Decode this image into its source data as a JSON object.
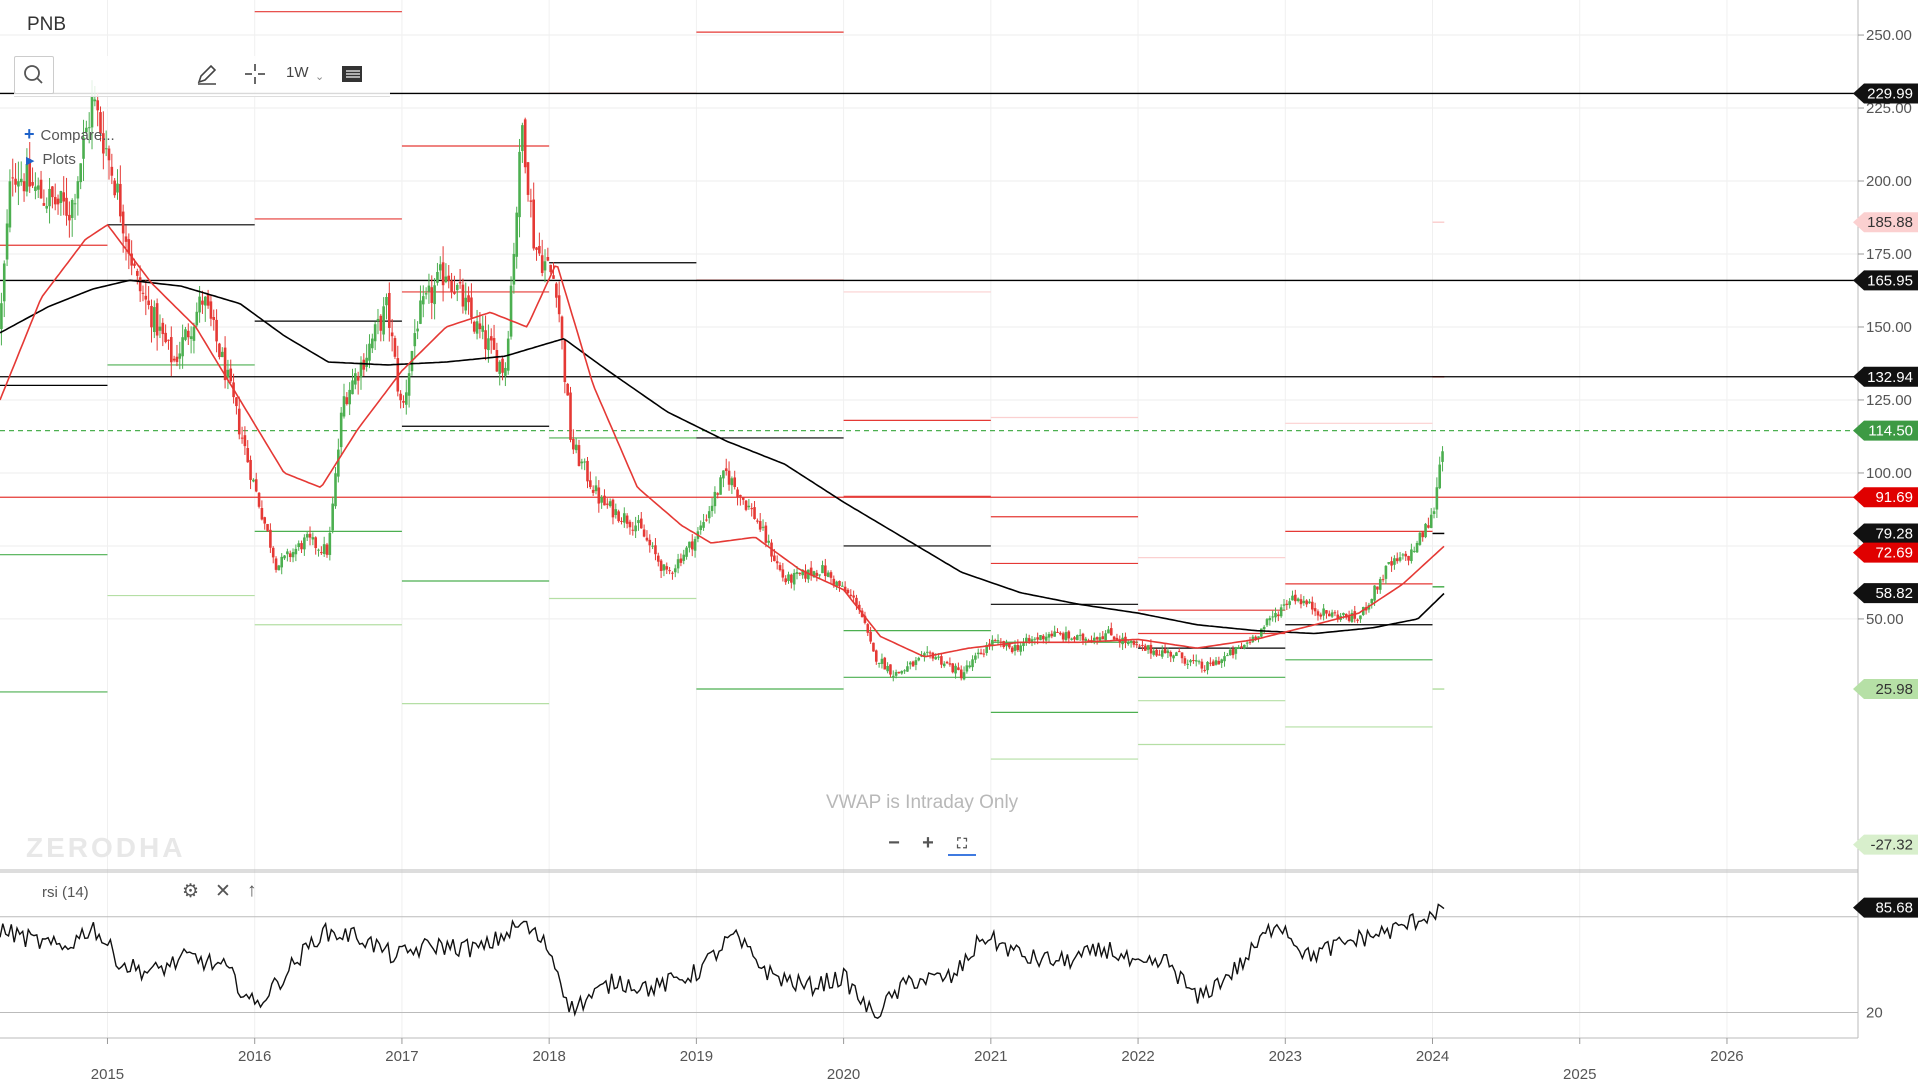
{
  "toolbar": {
    "symbol": "PNB",
    "interval": "1W",
    "compare_label": "Compare...",
    "plots_label": "Plots"
  },
  "overlay": {
    "watermark": "ZERODHA",
    "vwap_note": "VWAP is Intraday Only"
  },
  "rsi_panel": {
    "label": "rsi (14)"
  },
  "colors": {
    "up": "#4caf50",
    "down": "#e53935",
    "sma_fast": "#e53935",
    "sma_slow": "#000000",
    "current_price": "#3d9a44"
  },
  "chart_data": {
    "type": "candlestick",
    "symbol": "PNB",
    "interval": "1W",
    "x_axis": {
      "range": [
        2014.27,
        2026.89
      ],
      "ticks": [
        {
          "label": "2015",
          "value": 2015
        },
        {
          "label": "2016",
          "value": 2016
        },
        {
          "label": "2017",
          "value": 2017
        },
        {
          "label": "2018",
          "value": 2018
        },
        {
          "label": "2019",
          "value": 2019
        },
        {
          "label": "2020",
          "value": 2020
        },
        {
          "label": "2021",
          "value": 2021
        },
        {
          "label": "2022",
          "value": 2022
        },
        {
          "label": "2023",
          "value": 2023
        },
        {
          "label": "2024",
          "value": 2024
        },
        {
          "label": "2025",
          "value": 2025
        },
        {
          "label": "2026",
          "value": 2026
        }
      ]
    },
    "y_axis": {
      "range": [
        -36,
        262
      ],
      "ticks": [
        "250.00",
        "225.00",
        "200.00",
        "175.00",
        "150.00",
        "125.00",
        "100.00",
        "75.00",
        "50.00"
      ]
    },
    "price_anchors": [
      [
        2014.27,
        150
      ],
      [
        2014.35,
        205
      ],
      [
        2014.55,
        195
      ],
      [
        2014.75,
        190
      ],
      [
        2014.9,
        228
      ],
      [
        2015.05,
        200
      ],
      [
        2015.2,
        165
      ],
      [
        2015.45,
        138
      ],
      [
        2015.65,
        160
      ],
      [
        2015.8,
        135
      ],
      [
        2016.0,
        95
      ],
      [
        2016.15,
        68
      ],
      [
        2016.35,
        77
      ],
      [
        2016.5,
        73
      ],
      [
        2016.6,
        125
      ],
      [
        2016.75,
        140
      ],
      [
        2016.9,
        157
      ],
      [
        2017.0,
        120
      ],
      [
        2017.1,
        152
      ],
      [
        2017.3,
        170
      ],
      [
        2017.5,
        150
      ],
      [
        2017.7,
        135
      ],
      [
        2017.82,
        220
      ],
      [
        2017.9,
        178
      ],
      [
        2018.05,
        165
      ],
      [
        2018.15,
        110
      ],
      [
        2018.35,
        90
      ],
      [
        2018.6,
        82
      ],
      [
        2018.8,
        65
      ],
      [
        2019.0,
        78
      ],
      [
        2019.2,
        100
      ],
      [
        2019.4,
        85
      ],
      [
        2019.6,
        63
      ],
      [
        2019.85,
        67
      ],
      [
        2020.1,
        55
      ],
      [
        2020.2,
        38
      ],
      [
        2020.35,
        31
      ],
      [
        2020.6,
        38
      ],
      [
        2020.8,
        31
      ],
      [
        2021.0,
        42
      ],
      [
        2021.15,
        40
      ],
      [
        2021.4,
        45
      ],
      [
        2021.6,
        43
      ],
      [
        2021.8,
        45
      ],
      [
        2022.0,
        40
      ],
      [
        2022.25,
        38
      ],
      [
        2022.45,
        33
      ],
      [
        2022.7,
        40
      ],
      [
        2022.85,
        47
      ],
      [
        2023.05,
        58
      ],
      [
        2023.25,
        52
      ],
      [
        2023.5,
        50
      ],
      [
        2023.7,
        68
      ],
      [
        2023.85,
        72
      ],
      [
        2024.0,
        85
      ],
      [
        2024.08,
        114.5
      ]
    ],
    "sma_fast_anchors": [
      [
        2014.27,
        125
      ],
      [
        2014.55,
        160
      ],
      [
        2014.85,
        180
      ],
      [
        2015.0,
        185
      ],
      [
        2015.3,
        165
      ],
      [
        2015.6,
        150
      ],
      [
        2015.9,
        125
      ],
      [
        2016.2,
        100
      ],
      [
        2016.45,
        95
      ],
      [
        2016.7,
        115
      ],
      [
        2017.0,
        135
      ],
      [
        2017.3,
        150
      ],
      [
        2017.6,
        155
      ],
      [
        2017.85,
        150
      ],
      [
        2018.05,
        172
      ],
      [
        2018.3,
        130
      ],
      [
        2018.6,
        95
      ],
      [
        2018.9,
        82
      ],
      [
        2019.1,
        76
      ],
      [
        2019.4,
        78
      ],
      [
        2019.7,
        67
      ],
      [
        2020.0,
        60
      ],
      [
        2020.25,
        44
      ],
      [
        2020.55,
        37
      ],
      [
        2020.85,
        40
      ],
      [
        2021.2,
        42
      ],
      [
        2021.6,
        42
      ],
      [
        2022.0,
        43
      ],
      [
        2022.4,
        40
      ],
      [
        2022.8,
        43
      ],
      [
        2023.2,
        48
      ],
      [
        2023.5,
        52
      ],
      [
        2023.8,
        62
      ],
      [
        2024.08,
        75
      ]
    ],
    "sma_slow_anchors": [
      [
        2014.27,
        148
      ],
      [
        2014.6,
        157
      ],
      [
        2014.9,
        163
      ],
      [
        2015.15,
        166
      ],
      [
        2015.5,
        164
      ],
      [
        2015.9,
        158
      ],
      [
        2016.2,
        147
      ],
      [
        2016.5,
        138
      ],
      [
        2016.9,
        137
      ],
      [
        2017.3,
        138
      ],
      [
        2017.7,
        140
      ],
      [
        2018.1,
        146
      ],
      [
        2018.4,
        135
      ],
      [
        2018.8,
        121
      ],
      [
        2019.2,
        111
      ],
      [
        2019.6,
        103
      ],
      [
        2020.0,
        90
      ],
      [
        2020.4,
        78
      ],
      [
        2020.8,
        66
      ],
      [
        2021.2,
        59
      ],
      [
        2021.6,
        55
      ],
      [
        2022.0,
        52
      ],
      [
        2022.4,
        48
      ],
      [
        2022.8,
        46
      ],
      [
        2023.2,
        45
      ],
      [
        2023.6,
        47
      ],
      [
        2023.9,
        50
      ],
      [
        2024.08,
        58.82
      ]
    ],
    "rsi_anchors": [
      [
        2014.27,
        72
      ],
      [
        2014.5,
        65
      ],
      [
        2014.7,
        60
      ],
      [
        2014.9,
        74
      ],
      [
        2015.1,
        50
      ],
      [
        2015.3,
        45
      ],
      [
        2015.55,
        55
      ],
      [
        2015.8,
        48
      ],
      [
        2016.0,
        24
      ],
      [
        2016.15,
        38
      ],
      [
        2016.45,
        70
      ],
      [
        2016.7,
        68
      ],
      [
        2016.95,
        55
      ],
      [
        2017.2,
        62
      ],
      [
        2017.55,
        60
      ],
      [
        2017.82,
        76
      ],
      [
        2018.0,
        60
      ],
      [
        2018.15,
        22
      ],
      [
        2018.45,
        40
      ],
      [
        2018.7,
        35
      ],
      [
        2019.0,
        45
      ],
      [
        2019.25,
        68
      ],
      [
        2019.5,
        44
      ],
      [
        2019.75,
        36
      ],
      [
        2020.0,
        42
      ],
      [
        2020.2,
        18
      ],
      [
        2020.45,
        40
      ],
      [
        2020.75,
        42
      ],
      [
        2020.95,
        68
      ],
      [
        2021.25,
        54
      ],
      [
        2021.5,
        52
      ],
      [
        2021.8,
        60
      ],
      [
        2022.0,
        48
      ],
      [
        2022.2,
        52
      ],
      [
        2022.4,
        28
      ],
      [
        2022.7,
        50
      ],
      [
        2022.95,
        78
      ],
      [
        2023.15,
        55
      ],
      [
        2023.45,
        65
      ],
      [
        2023.75,
        72
      ],
      [
        2024.08,
        85.68
      ]
    ],
    "rsi_y_range": [
      4,
      108
    ],
    "rsi_levels": [
      80,
      20
    ],
    "rsi_tick": "20",
    "horizontal_levels": [
      {
        "value": 229.99,
        "label": "229.99",
        "color": "#000000",
        "style": "solid"
      },
      {
        "value": 165.95,
        "label": "165.95",
        "color": "#000000",
        "style": "solid"
      },
      {
        "value": 132.94,
        "label": "132.94",
        "color": "#000000",
        "style": "solid"
      },
      {
        "value": 91.69,
        "label": "91.69",
        "color": "#e53935",
        "style": "solid"
      },
      {
        "value": 114.5,
        "label": "114.50",
        "color": "#4caf50",
        "style": "dashed"
      }
    ],
    "price_badges": [
      {
        "value": 229.99,
        "label": "229.99",
        "bg": "#111111",
        "fg": "#ffffff"
      },
      {
        "value": 185.88,
        "label": "185.88",
        "bg": "#fbd0d0",
        "fg": "#333333"
      },
      {
        "value": 165.95,
        "label": "165.95",
        "bg": "#111111",
        "fg": "#ffffff"
      },
      {
        "value": 132.94,
        "label": "132.94",
        "bg": "#111111",
        "fg": "#ffffff"
      },
      {
        "value": 114.5,
        "label": "114.50",
        "bg": "#3d9a44",
        "fg": "#ffffff"
      },
      {
        "value": 91.69,
        "label": "91.69",
        "bg": "#e00000",
        "fg": "#ffffff"
      },
      {
        "value": 79.28,
        "label": "79.28",
        "bg": "#111111",
        "fg": "#ffffff"
      },
      {
        "value": 72.69,
        "label": "72.69",
        "bg": "#e00000",
        "fg": "#ffffff"
      },
      {
        "value": 58.82,
        "label": "58.82",
        "bg": "#111111",
        "fg": "#ffffff"
      },
      {
        "value": 25.98,
        "label": "25.98",
        "bg": "#b6e0a6",
        "fg": "#333333"
      },
      {
        "value": -27.32,
        "label": "-27.32",
        "bg": "#d8efcc",
        "fg": "#333333"
      }
    ],
    "rsi_badge": {
      "value": 85.68,
      "label": "85.68"
    },
    "yearly_pivots": [
      {
        "x0": 2014.27,
        "x1": 2015.0,
        "lines": [
          [
            178,
            "#e53935"
          ],
          [
            130,
            "#000000"
          ],
          [
            72,
            "#4caf50"
          ],
          [
            25,
            "#4caf50"
          ]
        ]
      },
      {
        "x0": 2015.0,
        "x1": 2016.0,
        "lines": [
          [
            185,
            "#000000"
          ],
          [
            137,
            "#4caf50"
          ],
          [
            58,
            "#b5dfa5"
          ]
        ]
      },
      {
        "x0": 2016.0,
        "x1": 2017.0,
        "lines": [
          [
            258,
            "#e53935"
          ],
          [
            187,
            "#e53935"
          ],
          [
            152,
            "#000000"
          ],
          [
            80,
            "#4caf50"
          ],
          [
            48,
            "#b5dfa5"
          ]
        ]
      },
      {
        "x0": 2017.0,
        "x1": 2018.0,
        "lines": [
          [
            212,
            "#e53935"
          ],
          [
            162,
            "#e53935"
          ],
          [
            116,
            "#000000"
          ],
          [
            63,
            "#4caf50"
          ],
          [
            21,
            "#b5dfa5"
          ]
        ]
      },
      {
        "x0": 2018.0,
        "x1": 2019.0,
        "lines": [
          [
            230,
            "#e53935"
          ],
          [
            172,
            "#000000"
          ],
          [
            112,
            "#4caf50"
          ],
          [
            57,
            "#b5dfa5"
          ]
        ]
      },
      {
        "x0": 2019.0,
        "x1": 2020.0,
        "lines": [
          [
            251,
            "#e53935"
          ],
          [
            166,
            "#e53935"
          ],
          [
            112,
            "#000000"
          ],
          [
            26,
            "#4caf50"
          ]
        ]
      },
      {
        "x0": 2020.0,
        "x1": 2021.0,
        "lines": [
          [
            162,
            "#fbd0d0"
          ],
          [
            118,
            "#e53935"
          ],
          [
            92,
            "#e53935"
          ],
          [
            75,
            "#000000"
          ],
          [
            46,
            "#4caf50"
          ],
          [
            30,
            "#4caf50"
          ]
        ]
      },
      {
        "x0": 2021.0,
        "x1": 2022.0,
        "lines": [
          [
            119,
            "#fbd0d0"
          ],
          [
            85,
            "#e53935"
          ],
          [
            69,
            "#e53935"
          ],
          [
            55,
            "#000000"
          ],
          [
            42,
            "#4caf50"
          ],
          [
            18,
            "#4caf50"
          ],
          [
            2,
            "#b5dfa5"
          ]
        ]
      },
      {
        "x0": 2022.0,
        "x1": 2023.0,
        "lines": [
          [
            71,
            "#fbd0d0"
          ],
          [
            53,
            "#e53935"
          ],
          [
            45,
            "#e53935"
          ],
          [
            40,
            "#000000"
          ],
          [
            30,
            "#4caf50"
          ],
          [
            22,
            "#b5dfa5"
          ],
          [
            7,
            "#b5dfa5"
          ]
        ]
      },
      {
        "x0": 2023.0,
        "x1": 2024.0,
        "lines": [
          [
            117,
            "#fbd0d0"
          ],
          [
            80,
            "#e53935"
          ],
          [
            62,
            "#e53935"
          ],
          [
            48,
            "#000000"
          ],
          [
            36,
            "#4caf50"
          ],
          [
            13,
            "#b5dfa5"
          ]
        ]
      }
    ],
    "next_year_pivot_stubs": [
      [
        185.88,
        "#fbd0d0"
      ],
      [
        132.94,
        "#e53935"
      ],
      [
        79.28,
        "#000000"
      ],
      [
        61,
        "#4caf50"
      ],
      [
        25.98,
        "#b5dfa5"
      ]
    ]
  }
}
